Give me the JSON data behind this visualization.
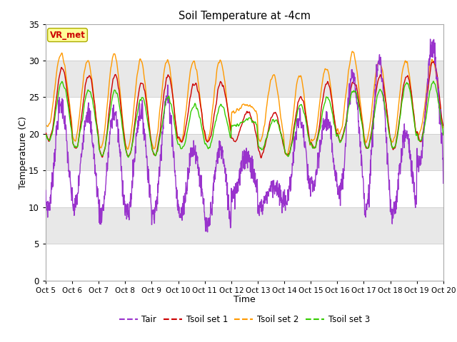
{
  "title": "Soil Temperature at -4cm",
  "xlabel": "Time",
  "ylabel": "Temperature (C)",
  "ylim": [
    0,
    35
  ],
  "yticks": [
    0,
    5,
    10,
    15,
    20,
    25,
    30,
    35
  ],
  "xlim_hours": [
    0,
    360
  ],
  "xtick_positions": [
    0,
    24,
    48,
    72,
    96,
    120,
    144,
    168,
    192,
    216,
    240,
    264,
    288,
    312,
    336,
    360
  ],
  "xtick_labels": [
    "Oct 5",
    "Oct 6",
    "Oct 7",
    "Oct 8",
    "Oct 9",
    "Oct 10",
    "Oct 11",
    "Oct 12",
    "Oct 13",
    "Oct 14",
    "Oct 15",
    "Oct 16",
    "Oct 17",
    "Oct 18",
    "Oct 19",
    "Oct 20"
  ],
  "legend_labels": [
    "Tair",
    "Tsoil set 1",
    "Tsoil set 2",
    "Tsoil set 3"
  ],
  "line_colors": [
    "#9933cc",
    "#cc0000",
    "#ff9900",
    "#33cc00"
  ],
  "annotation_text": "VR_met",
  "annotation_color": "#cc0000",
  "annotation_bg": "#ffff99",
  "annotation_border": "#aaaa00",
  "grid_color": "#cccccc",
  "plot_bg": "#ffffff",
  "fig_bg": "#ffffff",
  "band_colors": [
    "#ffffff",
    "#e8e8e8"
  ],
  "tair_mins": [
    10,
    10,
    9,
    9,
    9,
    9,
    7,
    12,
    10,
    11,
    13,
    12,
    10,
    9,
    16,
    15
  ],
  "tair_maxs": [
    24,
    23,
    23,
    23,
    25,
    18,
    18,
    17,
    13,
    22,
    22,
    28,
    30,
    20,
    32,
    21
  ],
  "ts1_mins": [
    19,
    18,
    17,
    17,
    17,
    19,
    19,
    19,
    17,
    17,
    18,
    19,
    18,
    18,
    19,
    19
  ],
  "ts1_maxs": [
    29,
    28,
    28,
    27,
    28,
    27,
    27,
    23,
    23,
    25,
    27,
    27,
    28,
    28,
    30,
    30
  ],
  "ts2_mins": [
    21,
    19,
    18,
    18,
    18,
    19,
    19,
    23,
    19,
    17,
    19,
    20,
    19,
    19,
    20,
    20
  ],
  "ts2_maxs": [
    31,
    30,
    31,
    30,
    30,
    30,
    30,
    24,
    28,
    28,
    29,
    31,
    30,
    30,
    30,
    32
  ],
  "ts3_mins": [
    19,
    18,
    17,
    17,
    17,
    18,
    18,
    21,
    18,
    17,
    18,
    19,
    18,
    18,
    19,
    19
  ],
  "ts3_maxs": [
    27,
    26,
    26,
    25,
    25,
    24,
    24,
    22,
    22,
    24,
    25,
    26,
    26,
    27,
    27,
    27
  ]
}
